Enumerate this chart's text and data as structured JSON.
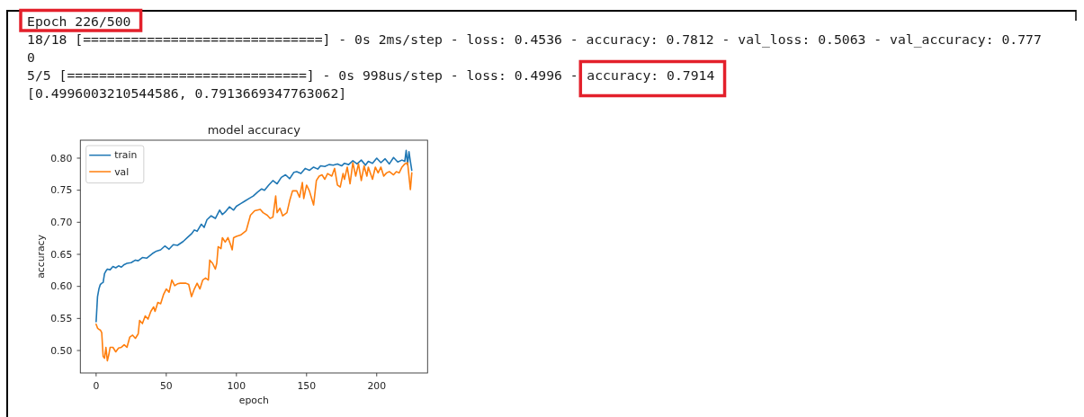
{
  "chart_data": {
    "type": "line",
    "title": "model accuracy",
    "xlabel": "epoch",
    "ylabel": "accuracy",
    "annotations": [
      "Epoch 226/500",
      "18/18 [==============================] - 0s 2ms/step - loss: 0.4536 - accuracy: 0.7812 - val_loss: 0.5063 - val_accuracy: 0.777",
      "0",
      "5/5 [==============================] - 0s 998us/step - loss: 0.4996 -",
      "accuracy: 0.7914",
      "[0.4996003210544586, 0.7913669347763062]"
    ],
    "xlim": [
      -11.25,
      236.25
    ],
    "ylim": [
      0.465,
      0.828
    ],
    "xticks": [
      0,
      50,
      100,
      150,
      200
    ],
    "yticks": [
      {
        "value": 0.5,
        "label": "0.50"
      },
      0.55,
      {
        "value": 0.6,
        "label": "0.60"
      },
      0.65,
      {
        "value": 0.7,
        "label": "0.70"
      },
      0.75,
      {
        "value": 0.8,
        "label": "0.80"
      }
    ],
    "legend": "top left",
    "series": [
      {
        "name": "train",
        "color": "#1f77b4",
        "x": [
          0,
          1,
          2,
          3,
          4,
          5,
          6,
          7,
          8,
          10,
          12,
          14,
          16,
          18,
          20,
          22,
          25,
          28,
          30,
          33,
          36,
          40,
          43,
          46,
          49,
          52,
          55,
          58,
          62,
          65,
          68,
          70,
          72,
          75,
          77,
          79,
          82,
          85,
          88,
          90,
          92,
          95,
          98,
          100,
          103,
          106,
          109,
          112,
          115,
          118,
          120,
          123,
          126,
          129,
          132,
          135,
          138,
          141,
          143,
          146,
          149,
          152,
          155,
          158,
          160,
          163,
          166,
          169,
          172,
          175,
          177,
          180,
          183,
          186,
          189,
          192,
          194,
          197,
          200,
          203,
          206,
          209,
          212,
          215,
          218,
          220,
          221,
          222,
          223,
          224,
          225
        ],
        "values": [
          0.545,
          0.584,
          0.596,
          0.603,
          0.605,
          0.606,
          0.62,
          0.624,
          0.627,
          0.626,
          0.631,
          0.629,
          0.632,
          0.63,
          0.634,
          0.636,
          0.637,
          0.641,
          0.64,
          0.645,
          0.644,
          0.651,
          0.655,
          0.657,
          0.663,
          0.658,
          0.665,
          0.664,
          0.67,
          0.676,
          0.682,
          0.688,
          0.686,
          0.697,
          0.692,
          0.704,
          0.71,
          0.706,
          0.719,
          0.712,
          0.716,
          0.724,
          0.719,
          0.725,
          0.729,
          0.733,
          0.737,
          0.741,
          0.747,
          0.752,
          0.75,
          0.758,
          0.765,
          0.76,
          0.77,
          0.774,
          0.768,
          0.778,
          0.779,
          0.776,
          0.784,
          0.781,
          0.786,
          0.783,
          0.788,
          0.787,
          0.79,
          0.789,
          0.791,
          0.788,
          0.792,
          0.79,
          0.796,
          0.791,
          0.797,
          0.789,
          0.795,
          0.792,
          0.8,
          0.793,
          0.799,
          0.791,
          0.801,
          0.794,
          0.797,
          0.795,
          0.812,
          0.79,
          0.81,
          0.795,
          0.781
        ]
      },
      {
        "name": "val",
        "color": "#ff7f0e",
        "x": [
          0,
          1,
          2,
          3,
          4,
          5,
          6,
          7,
          8,
          9,
          10,
          12,
          14,
          16,
          18,
          20,
          22,
          24,
          26,
          28,
          30,
          31,
          33,
          35,
          37,
          39,
          41,
          42,
          44,
          46,
          48,
          50,
          52,
          54,
          56,
          58,
          60,
          62,
          64,
          66,
          68,
          70,
          72,
          74,
          76,
          78,
          80,
          81,
          83,
          85,
          86,
          87,
          89,
          90,
          92,
          94,
          96,
          97,
          98,
          100,
          103,
          107,
          110,
          113,
          117,
          119,
          122,
          124,
          126,
          128,
          129,
          131,
          133,
          136,
          138,
          140,
          143,
          145,
          147,
          148,
          150,
          152,
          155,
          157,
          159,
          161,
          163,
          165,
          168,
          170,
          172,
          174,
          176,
          177,
          179,
          181,
          183,
          185,
          187,
          189,
          191,
          193,
          194,
          197,
          199,
          201,
          203,
          205,
          207,
          209,
          212,
          214,
          216,
          218,
          220,
          222,
          224,
          225
        ],
        "values": [
          0.541,
          0.535,
          0.533,
          0.532,
          0.528,
          0.491,
          0.488,
          0.505,
          0.484,
          0.493,
          0.505,
          0.505,
          0.498,
          0.504,
          0.505,
          0.509,
          0.505,
          0.521,
          0.524,
          0.519,
          0.526,
          0.547,
          0.542,
          0.554,
          0.549,
          0.561,
          0.568,
          0.561,
          0.575,
          0.573,
          0.587,
          0.596,
          0.591,
          0.61,
          0.601,
          0.604,
          0.605,
          0.605,
          0.605,
          0.603,
          0.584,
          0.596,
          0.605,
          0.596,
          0.61,
          0.613,
          0.61,
          0.641,
          0.636,
          0.627,
          0.636,
          0.662,
          0.659,
          0.676,
          0.669,
          0.676,
          0.664,
          0.657,
          0.676,
          0.678,
          0.68,
          0.687,
          0.711,
          0.718,
          0.72,
          0.715,
          0.711,
          0.706,
          0.708,
          0.741,
          0.715,
          0.722,
          0.71,
          0.715,
          0.734,
          0.749,
          0.749,
          0.739,
          0.762,
          0.737,
          0.758,
          0.749,
          0.727,
          0.765,
          0.772,
          0.774,
          0.767,
          0.776,
          0.772,
          0.784,
          0.758,
          0.755,
          0.776,
          0.767,
          0.786,
          0.76,
          0.793,
          0.772,
          0.791,
          0.765,
          0.788,
          0.772,
          0.786,
          0.767,
          0.786,
          0.777,
          0.786,
          0.772,
          0.777,
          0.779,
          0.774,
          0.779,
          0.777,
          0.786,
          0.791,
          0.793,
          0.751,
          0.777
        ]
      }
    ]
  }
}
